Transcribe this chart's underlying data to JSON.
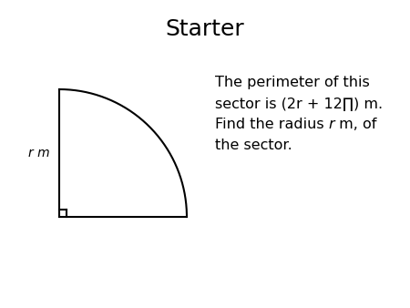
{
  "title": "Starter",
  "title_fontsize": 18,
  "background_color": "#ffffff",
  "sector_color": "#000000",
  "sector_linewidth": 1.5,
  "label_rm": "r m",
  "text_line1": "The perimeter of this",
  "text_line2": "sector is (2r + 12∏) m.",
  "text_line3_pre": "Find the radius ",
  "text_line3_r": "r",
  "text_line3_post": " m, of",
  "text_line4": "the sector.",
  "text_fontsize": 11.5,
  "fig_width": 4.5,
  "fig_height": 3.38,
  "dpi": 100
}
